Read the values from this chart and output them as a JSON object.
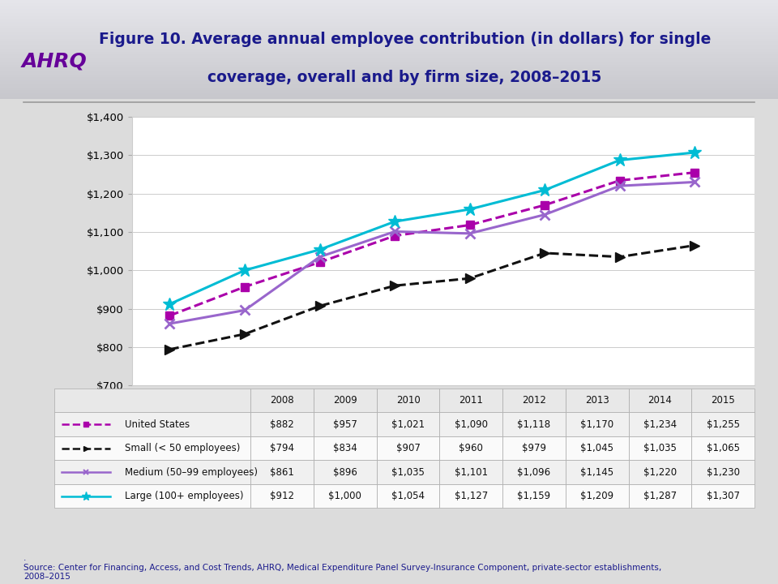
{
  "title_line1": "Figure 10. Average annual employee contribution (in dollars) for single",
  "title_line2": "coverage, overall and by firm size, 2008–2015",
  "years": [
    2008,
    2009,
    2010,
    2011,
    2012,
    2013,
    2014,
    2015
  ],
  "series": {
    "United States": [
      882,
      957,
      1021,
      1090,
      1118,
      1170,
      1234,
      1255
    ],
    "Small (< 50 employees)": [
      794,
      834,
      907,
      960,
      979,
      1045,
      1035,
      1065
    ],
    "Medium (50–99 employees)": [
      861,
      896,
      1035,
      1101,
      1096,
      1145,
      1220,
      1230
    ],
    "Large (100+ employees)": [
      912,
      1000,
      1054,
      1127,
      1159,
      1209,
      1287,
      1307
    ]
  },
  "line_colors": {
    "United States": "#aa00aa",
    "Small (< 50 employees)": "#111111",
    "Medium (50–99 employees)": "#9966cc",
    "Large (100+ employees)": "#00bcd4"
  },
  "line_styles": {
    "United States": "--",
    "Small (< 50 employees)": "--",
    "Medium (50–99 employees)": "-",
    "Large (100+ employees)": "-"
  },
  "markers": {
    "United States": "s",
    "Small (< 50 employees)": "^",
    "Medium (50–99 employees)": "x",
    "Large (100+ employees)": "*"
  },
  "ylim": [
    700,
    1400
  ],
  "yticks": [
    700,
    800,
    900,
    1000,
    1100,
    1200,
    1300,
    1400
  ],
  "bg_color": "#dcdcdc",
  "header_bg": "#d0d0d8",
  "plot_bg": "#ffffff",
  "title_color": "#1a1a8c",
  "table_header_bg": "#e8e8e8",
  "table_row_colors": [
    "#f0f0f0",
    "#fafafa",
    "#f0f0f0",
    "#fafafa"
  ],
  "source_text": ".\nSource: Center for Financing, Access, and Cost Trends, AHRQ, Medical Expenditure Panel Survey-Insurance Component, private-sector establishments,\n2008–2015",
  "table_headers": [
    "",
    "2008",
    "2009",
    "2010",
    "2011",
    "2012",
    "2013",
    "2014",
    "2015"
  ],
  "table_rows": [
    [
      "United States",
      "$882",
      "$957",
      "$1,021",
      "$1,090",
      "$1,118",
      "$1,170",
      "$1,234",
      "$1,255"
    ],
    [
      "Small (< 50 employees)",
      "$794",
      "$834",
      "$907",
      "$960",
      "$979",
      "$1,045",
      "$1,035",
      "$1,065"
    ],
    [
      "Medium (50–99 employees)",
      "$861",
      "$896",
      "$1,035",
      "$1,101",
      "$1,096",
      "$1,145",
      "$1,220",
      "$1,230"
    ],
    [
      "Large (100+ employees)",
      "$912",
      "$1,000",
      "$1,054",
      "$1,127",
      "$1,159",
      "$1,209",
      "$1,287",
      "$1,307"
    ]
  ]
}
